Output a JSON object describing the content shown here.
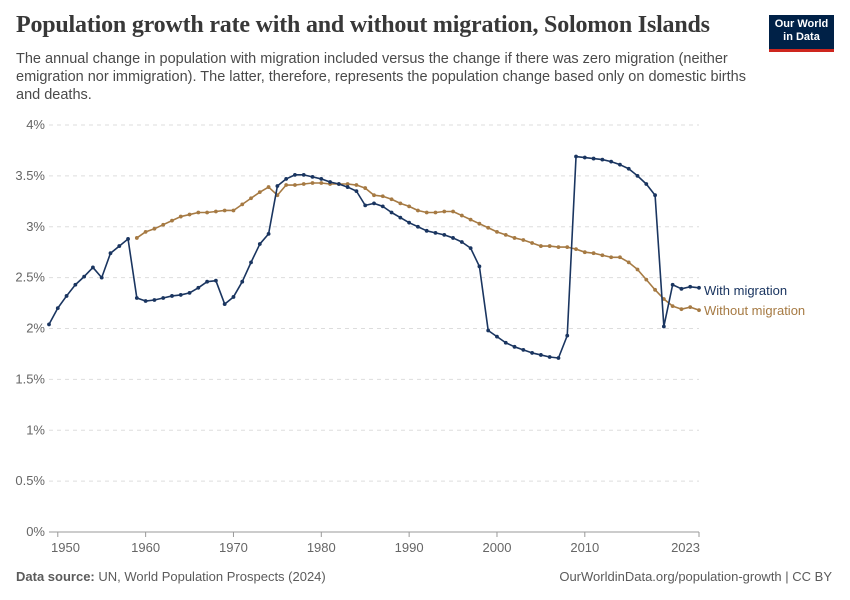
{
  "header": {
    "title": "Population growth rate with and without migration, Solomon Islands",
    "subtitle": "The annual change in population with migration included versus the change if there was zero migration (neither emigration nor immigration). The latter, therefore, represents the population change based only on domestic births and deaths."
  },
  "logo": {
    "line1": "Our World",
    "line2": "in Data",
    "bg": "#002147",
    "accent": "#ce261e"
  },
  "footer": {
    "source_label": "Data source:",
    "source_text": "UN, World Population Prospects (2024)",
    "link": "OurWorldinData.org/population-growth | CC BY"
  },
  "chart_data": {
    "type": "line",
    "ylim": [
      0,
      4
    ],
    "xlim": [
      1950,
      2023
    ],
    "y_ticks": [
      0,
      0.5,
      1,
      1.5,
      2,
      2.5,
      3,
      3.5,
      4
    ],
    "y_tick_labels": [
      "0%",
      "0.5%",
      "1%",
      "1.5%",
      "2%",
      "2.5%",
      "3%",
      "3.5%",
      "4%"
    ],
    "x_ticks": [
      1950,
      1960,
      1970,
      1980,
      1990,
      2000,
      2010,
      2023
    ],
    "x_tick_labels": [
      "1950",
      "1960",
      "1970",
      "1980",
      "1990",
      "2000",
      "2010",
      "2023"
    ],
    "grid": "horizontal dashed",
    "legend": "right end labels",
    "series": [
      {
        "name": "With migration",
        "color": "#1a3560",
        "x": [
          1949,
          1950,
          1951,
          1952,
          1953,
          1954,
          1955,
          1956,
          1957,
          1958,
          1959,
          1960,
          1961,
          1962,
          1963,
          1964,
          1965,
          1966,
          1967,
          1968,
          1969,
          1970,
          1971,
          1972,
          1973,
          1974,
          1975,
          1976,
          1977,
          1978,
          1979,
          1980,
          1981,
          1982,
          1983,
          1984,
          1985,
          1986,
          1987,
          1988,
          1989,
          1990,
          1991,
          1992,
          1993,
          1994,
          1995,
          1996,
          1997,
          1998,
          1999,
          2000,
          2001,
          2002,
          2003,
          2004,
          2005,
          2006,
          2007,
          2008,
          2009,
          2010,
          2011,
          2012,
          2013,
          2014,
          2015,
          2016,
          2017,
          2018,
          2019,
          2020,
          2021,
          2022,
          2023
        ],
        "values": [
          2.04,
          2.2,
          2.32,
          2.43,
          2.51,
          2.6,
          2.5,
          2.74,
          2.81,
          2.88,
          2.3,
          2.27,
          2.28,
          2.3,
          2.32,
          2.33,
          2.35,
          2.4,
          2.46,
          2.47,
          2.24,
          2.31,
          2.46,
          2.65,
          2.83,
          2.93,
          3.4,
          3.47,
          3.51,
          3.51,
          3.49,
          3.47,
          3.44,
          3.42,
          3.39,
          3.35,
          3.21,
          3.23,
          3.2,
          3.14,
          3.09,
          3.04,
          3.0,
          2.96,
          2.94,
          2.92,
          2.89,
          2.85,
          2.79,
          2.61,
          1.98,
          1.92,
          1.86,
          1.82,
          1.79,
          1.76,
          1.74,
          1.72,
          1.71,
          1.93,
          3.69,
          3.68,
          3.67,
          3.66,
          3.64,
          3.61,
          3.57,
          3.5,
          3.42,
          3.31,
          2.02,
          2.43,
          2.39,
          2.41,
          2.4
        ]
      },
      {
        "name": "Without migration",
        "color": "#a67a43",
        "x": [
          1959,
          1960,
          1961,
          1962,
          1963,
          1964,
          1965,
          1966,
          1967,
          1968,
          1969,
          1970,
          1971,
          1972,
          1973,
          1974,
          1975,
          1976,
          1977,
          1978,
          1979,
          1980,
          1981,
          1982,
          1983,
          1984,
          1985,
          1986,
          1987,
          1988,
          1989,
          1990,
          1991,
          1992,
          1993,
          1994,
          1995,
          1996,
          1997,
          1998,
          1999,
          2000,
          2001,
          2002,
          2003,
          2004,
          2005,
          2006,
          2007,
          2008,
          2009,
          2010,
          2011,
          2012,
          2013,
          2014,
          2015,
          2016,
          2017,
          2018,
          2019,
          2020,
          2021,
          2022,
          2023
        ],
        "values": [
          2.89,
          2.95,
          2.98,
          3.02,
          3.06,
          3.1,
          3.12,
          3.14,
          3.14,
          3.15,
          3.16,
          3.16,
          3.22,
          3.28,
          3.34,
          3.39,
          3.31,
          3.41,
          3.41,
          3.42,
          3.43,
          3.43,
          3.42,
          3.42,
          3.42,
          3.41,
          3.38,
          3.31,
          3.3,
          3.27,
          3.23,
          3.2,
          3.16,
          3.14,
          3.14,
          3.15,
          3.15,
          3.11,
          3.07,
          3.03,
          2.99,
          2.95,
          2.92,
          2.89,
          2.87,
          2.84,
          2.81,
          2.81,
          2.8,
          2.8,
          2.78,
          2.75,
          2.74,
          2.72,
          2.7,
          2.7,
          2.65,
          2.58,
          2.48,
          2.38,
          2.29,
          2.22,
          2.19,
          2.21,
          2.18
        ]
      }
    ]
  }
}
